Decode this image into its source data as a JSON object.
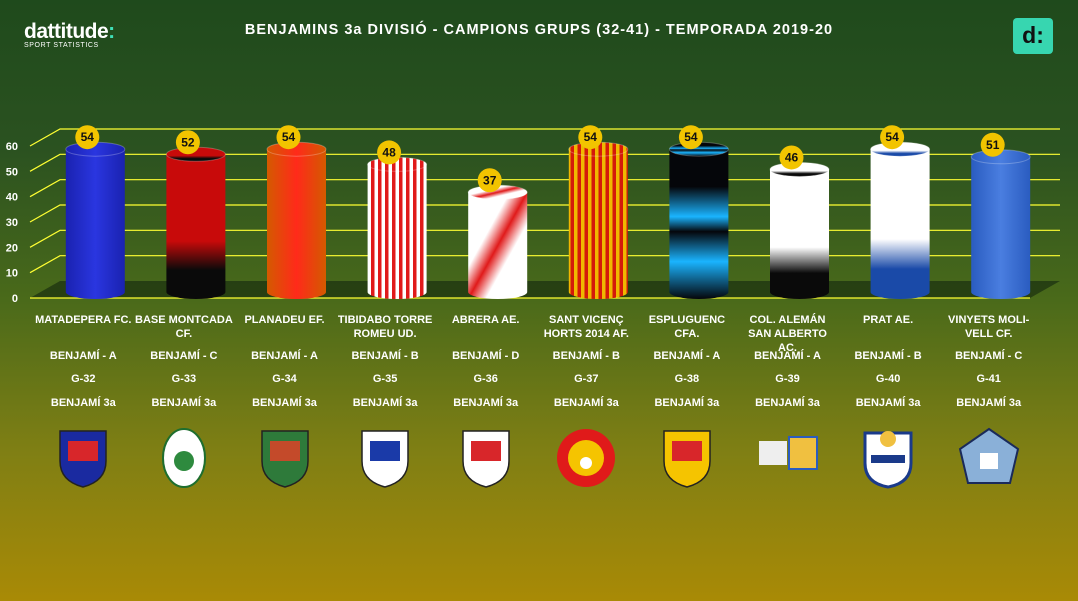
{
  "header": {
    "brand": "dattitude",
    "brand_colon": ":",
    "brand_sub": "SPORT STATISTICS",
    "title": "BENJAMINS 3a DIVISIÓ - CAMPIONS GRUPS (32-41) - TEMPORADA 2019-20",
    "badge": "d:"
  },
  "chart_data": {
    "type": "bar",
    "title": "BENJAMINS 3a DIVISIÓ - CAMPIONS GRUPS (32-41) - TEMPORADA 2019-20",
    "ylim": [
      0,
      60
    ],
    "yticks": [
      0,
      10,
      20,
      30,
      40,
      50,
      60
    ],
    "grid": true,
    "categories": [
      "MATADEPERA FC.",
      "BASE MONTCADA CF.",
      "PLANADEU EF.",
      "TIBIDABO TORRE ROMEU UD.",
      "ABRERA AE.",
      "SANT VICENÇ HORTS 2014 AF.",
      "ESPLUGUENC CFA.",
      "COL. ALEMÁN SAN ALBERTO AC.",
      "PRAT AE.",
      "VINYETS MOLI-VELL CF."
    ],
    "values": [
      54,
      52,
      54,
      48,
      37,
      54,
      54,
      46,
      54,
      51
    ]
  },
  "teams": [
    {
      "name_lines": [
        "MATADEPERA FC.",
        ""
      ],
      "category": "BENJAMÍ - A",
      "group": "G-32",
      "division": "BENJAMÍ 3a",
      "colors": [
        "#1a22b0",
        "#2a36e0"
      ]
    },
    {
      "name_lines": [
        "BASE MONTCADA",
        "CF."
      ],
      "category": "BENJAMÍ - C",
      "group": "G-33",
      "division": "BENJAMÍ 3a",
      "colors": [
        "#c80a0a",
        "#0a0a0a"
      ]
    },
    {
      "name_lines": [
        "PLANADEU EF.",
        ""
      ],
      "category": "BENJAMÍ - A",
      "group": "G-34",
      "division": "BENJAMÍ 3a",
      "colors": [
        "#d45a00",
        "#ff2a1a"
      ]
    },
    {
      "name_lines": [
        "TIBIDABO TORRE",
        "ROMEU UD."
      ],
      "category": "BENJAMÍ - B",
      "group": "G-35",
      "division": "BENJAMÍ 3a",
      "colors": [
        "#e01a1a",
        "#ffffff"
      ]
    },
    {
      "name_lines": [
        "ABRERA AE.",
        ""
      ],
      "category": "BENJAMÍ - D",
      "group": "G-36",
      "division": "BENJAMÍ 3a",
      "colors": [
        "#ffffff",
        "#e01a1a"
      ]
    },
    {
      "name_lines": [
        "SANT VICENÇ",
        "HORTS 2014 AF."
      ],
      "category": "BENJAMÍ - B",
      "group": "G-37",
      "division": "BENJAMÍ 3a",
      "colors": [
        "#f0b800",
        "#d41a0a"
      ]
    },
    {
      "name_lines": [
        "ESPLUGUENC",
        "CFA."
      ],
      "category": "BENJAMÍ - A",
      "group": "G-38",
      "division": "BENJAMÍ 3a",
      "colors": [
        "#05060a",
        "#1ab4ff"
      ]
    },
    {
      "name_lines": [
        "COL. ALEMÁN",
        "SAN ALBERTO AC."
      ],
      "category": "BENJAMÍ - A",
      "group": "G-39",
      "division": "BENJAMÍ 3a",
      "colors": [
        "#ffffff",
        "#0a0a0a"
      ]
    },
    {
      "name_lines": [
        "PRAT AE.",
        ""
      ],
      "category": "BENJAMÍ - B",
      "group": "G-40",
      "division": "BENJAMÍ 3a",
      "colors": [
        "#ffffff",
        "#1a4aa8"
      ]
    },
    {
      "name_lines": [
        "VINYETS MOLI-",
        "VELL CF."
      ],
      "category": "BENJAMÍ - C",
      "group": "G-41",
      "division": "BENJAMÍ 3a",
      "colors": [
        "#2a5cc0",
        "#4a7ee0"
      ]
    }
  ]
}
